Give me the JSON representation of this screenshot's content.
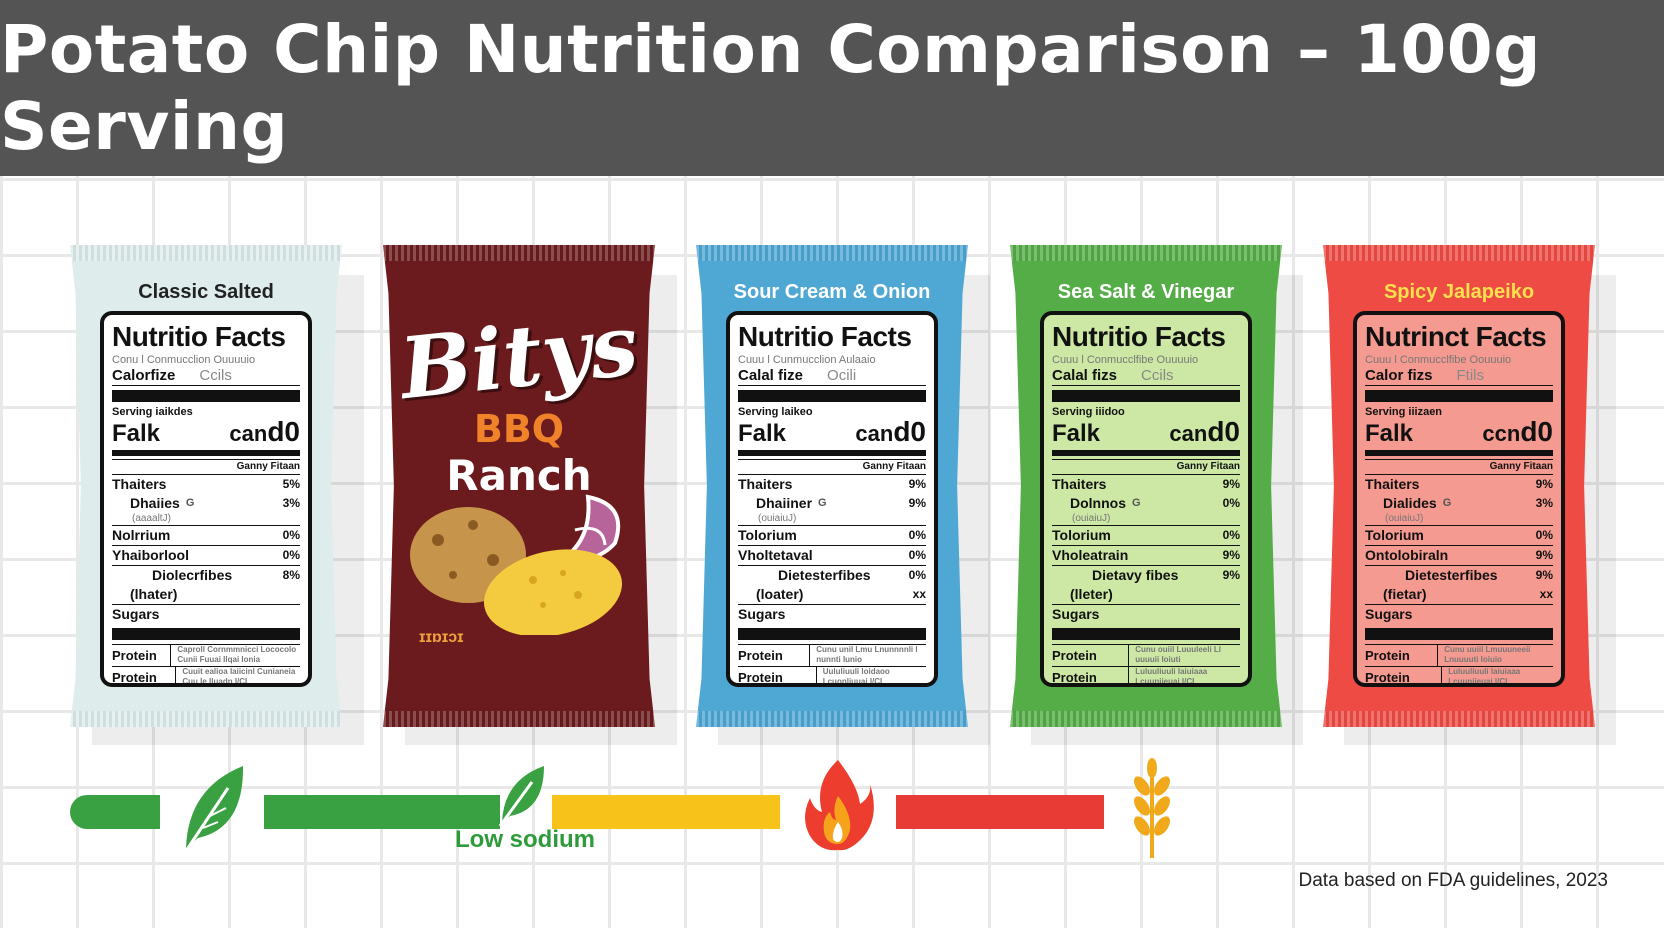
{
  "header": {
    "title": "Potato Chip Nutrition Comparison – 100g Serving"
  },
  "bags": [
    {
      "title": "Classic Salted",
      "bg": "#deecec",
      "titleColor": "#222222",
      "panelBg": "#ffffff",
      "nf_title": "Nutritio Facts",
      "tiny1": "Conu l Conmucclion Ouuuuio",
      "cal_label": "Calorfize",
      "cal_value": "Ccils",
      "serving": "Serving iaikdes",
      "big_left": "Falk",
      "big_right_prefix": "can",
      "big_right_value": "d0",
      "dv_head": "Ganny Fitaan",
      "rows": [
        {
          "label": "Thaiters",
          "pct": "5%",
          "cls": ""
        },
        {
          "label": "Dhaiies",
          "pct": "3%",
          "cls": "ind",
          "mid": "G",
          "sub": "(aaaaltJ)"
        },
        {
          "label": "Nolrrium",
          "pct": "0%",
          "cls": ""
        },
        {
          "label": "Yhaiborlool",
          "pct": "0%",
          "cls": ""
        },
        {
          "label": "Diolecrfibes",
          "pct": "8%",
          "cls": "ind2"
        },
        {
          "label": "(lhater)",
          "pct": "",
          "cls": "ind"
        },
        {
          "label": "Sugars",
          "pct": "",
          "cls": ""
        }
      ],
      "protein1": "Protein",
      "protein2": "Protein",
      "ptext1": "Caproll Cornmmnicci Lococolo Cunii Fuuai Ilqai Ionia",
      "ptext2": "Cuuit ealioa Iaiicinl Cunianeia Cuu Ie Iluadn I/CI"
    },
    {
      "title": "Sour Cream & Onion",
      "bg": "#4fa7d4",
      "titleColor": "#ffffff",
      "panelBg": "#ffffff",
      "nf_title": "Nutritio Facts",
      "tiny1": "Cuuu l Cunmucclion Aulaaio",
      "cal_label": "Calal fize",
      "cal_value": "Ocili",
      "serving": "Serving laikeo",
      "big_left": "Falk",
      "big_right_prefix": "can",
      "big_right_value": "d0",
      "dv_head": "Ganny Fitaan",
      "rows": [
        {
          "label": "Thaiters",
          "pct": "9%",
          "cls": ""
        },
        {
          "label": "Dhaiiner",
          "pct": "9%",
          "cls": "ind",
          "mid": "G",
          "sub": "(ouiaiuJ)"
        },
        {
          "label": "Tolorium",
          "pct": "0%",
          "cls": ""
        },
        {
          "label": "Vholtetaval",
          "pct": "0%",
          "cls": ""
        },
        {
          "label": "Dietesterfibes",
          "pct": "0%",
          "cls": "ind2"
        },
        {
          "label": "(loater)",
          "pct": "xx",
          "cls": "ind"
        },
        {
          "label": "Sugars",
          "pct": "",
          "cls": ""
        }
      ],
      "protein1": "Protein",
      "protein2": "Protein",
      "ptext1": "Cunu unil Lmu Lnunnnnli l nunnti Iunio",
      "ptext2": "Uululiuuli loidaoo Lcuonliuuai I/CI"
    },
    {
      "title": "Sea Salt & Vinegar",
      "bg": "#55ad47",
      "titleColor": "#ffffff",
      "panelBg": "#cde8a4",
      "nf_title": "Nutritio Facts",
      "tiny1": "Cuuu l Conmucclfibe Ouuuuio",
      "cal_label": "Calal fizs",
      "cal_value": "Ccils",
      "serving": "Serving iiidoo",
      "big_left": "Falk",
      "big_right_prefix": "can",
      "big_right_value": "d0",
      "dv_head": "Ganny Fitaan",
      "rows": [
        {
          "label": "Thaiters",
          "pct": "9%",
          "cls": ""
        },
        {
          "label": "Dolnnos",
          "pct": "0%",
          "cls": "ind",
          "mid": "G",
          "sub": "(ouiaiuJ)"
        },
        {
          "label": "Tolorium",
          "pct": "0%",
          "cls": ""
        },
        {
          "label": "Vholeatrain",
          "pct": "9%",
          "cls": ""
        },
        {
          "label": "Dietavy fibes",
          "pct": "9%",
          "cls": "ind2"
        },
        {
          "label": "(lleter)",
          "pct": "",
          "cls": "ind"
        },
        {
          "label": "Sugars",
          "pct": "",
          "cls": ""
        }
      ],
      "protein1": "Protein",
      "protein2": "Protein",
      "ptext1": "Cunu ouiil Luuuleeli Ll uuuuii Ioiuti",
      "ptext2": "Luluuliuuli Iaiuiaaa Lcuuniieuai I/CI"
    },
    {
      "title": "Spicy Jalapeiko",
      "bg": "#ee4b45",
      "titleColor": "#ffe14d",
      "panelBg": "#f59a90",
      "nf_title": "Nutrinct Facts",
      "tiny1": "Cuuu l Conmucclfibe Oouuuio",
      "cal_label": "Calor fizs",
      "cal_value": "Ftils",
      "serving": "Serving iiizaen",
      "big_left": "Falk",
      "big_right_prefix": "ccn",
      "big_right_value": "d0",
      "dv_head": "Ganny Fitaan",
      "rows": [
        {
          "label": "Thaiters",
          "pct": "9%",
          "cls": ""
        },
        {
          "label": "Dialides",
          "pct": "3%",
          "cls": "ind",
          "mid": "G",
          "sub": "(ouiaiuJ)"
        },
        {
          "label": "Tolorium",
          "pct": "0%",
          "cls": ""
        },
        {
          "label": "Ontolobiraln",
          "pct": "9%",
          "cls": ""
        },
        {
          "label": "Dietesterfibes",
          "pct": "9%",
          "cls": "ind2"
        },
        {
          "label": "(fietar)",
          "pct": "xx",
          "cls": "ind"
        },
        {
          "label": "Sugars",
          "pct": "",
          "cls": ""
        }
      ],
      "protein1": "Protein",
      "protein2": "Protein",
      "ptext1": "Cunu uuiil Lmuuuneeii Lnuuuuti Ioiuio",
      "ptext2": "Luluuliuuli Iaiuiaaa Lcuuniieuai I/CI"
    }
  ],
  "bbq": {
    "brand": "Bitys",
    "line1": "BBQ",
    "line2": "Ranch",
    "foot": "ɪɪɒɪɔɪ",
    "bg": "#6b1b1e"
  },
  "scale": {
    "label": "Low sodium",
    "colors": {
      "green": "#3aa143",
      "yellow": "#f7c21a",
      "red": "#e83b36",
      "wheat": "#f0a91b"
    },
    "icons": [
      "leaf-icon",
      "leaf-icon",
      "flame-icon",
      "wheat-icon"
    ]
  },
  "footnote": "Data based on FDA guidelines, 2023"
}
